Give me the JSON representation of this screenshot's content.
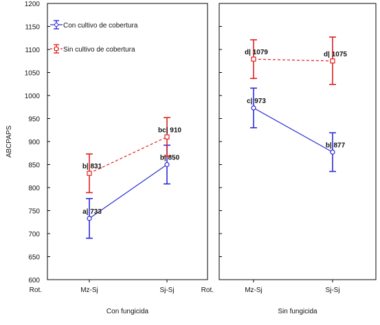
{
  "chart_data": {
    "type": "line",
    "ylabel": "ABCPAPS",
    "ylim": [
      600,
      1200
    ],
    "yticks": [
      600,
      650,
      700,
      750,
      800,
      850,
      900,
      950,
      1000,
      1050,
      1100,
      1150,
      1200
    ],
    "x_prefix_label": "Rot.",
    "categories": [
      "Mz-Sj",
      "Sj-Sj"
    ],
    "legend": {
      "position": "top-left of left panel",
      "entries": [
        {
          "label": "Con cultivo de cobertura",
          "color": "#2a2ad8"
        },
        {
          "label": "Sin cultivo de cobertura",
          "color": "#e02020"
        }
      ]
    },
    "panels": [
      {
        "xlabel": "Con fungicida",
        "series": [
          {
            "name": "Con cultivo de cobertura",
            "style": "solid",
            "marker": "circle",
            "color": "#2a2ad8",
            "values": [
              733,
              850
            ],
            "ci": [
              [
                690,
                776
              ],
              [
                808,
                892
              ]
            ],
            "labels": [
              "a| 733",
              "b| 850"
            ]
          },
          {
            "name": "Sin cultivo de cobertura",
            "style": "dashed",
            "marker": "square",
            "color": "#e02020",
            "values": [
              831,
              910
            ],
            "ci": [
              [
                789,
                873
              ],
              [
                868,
                952
              ]
            ],
            "labels": [
              "b| 831",
              "bc| 910"
            ]
          }
        ]
      },
      {
        "xlabel": "Sin fungicida",
        "series": [
          {
            "name": "Con cultivo de cobertura",
            "style": "solid",
            "marker": "circle",
            "color": "#2a2ad8",
            "values": [
              973,
              877
            ],
            "ci": [
              [
                930,
                1016
              ],
              [
                835,
                919
              ]
            ],
            "labels": [
              "c| 973",
              "b| 877"
            ]
          },
          {
            "name": "Sin cultivo de cobertura",
            "style": "dashed",
            "marker": "square",
            "color": "#e02020",
            "values": [
              1079,
              1075
            ],
            "ci": [
              [
                1037,
                1121
              ],
              [
                1024,
                1127
              ]
            ],
            "labels": [
              "d| 1079",
              "d| 1075"
            ]
          }
        ]
      }
    ]
  }
}
